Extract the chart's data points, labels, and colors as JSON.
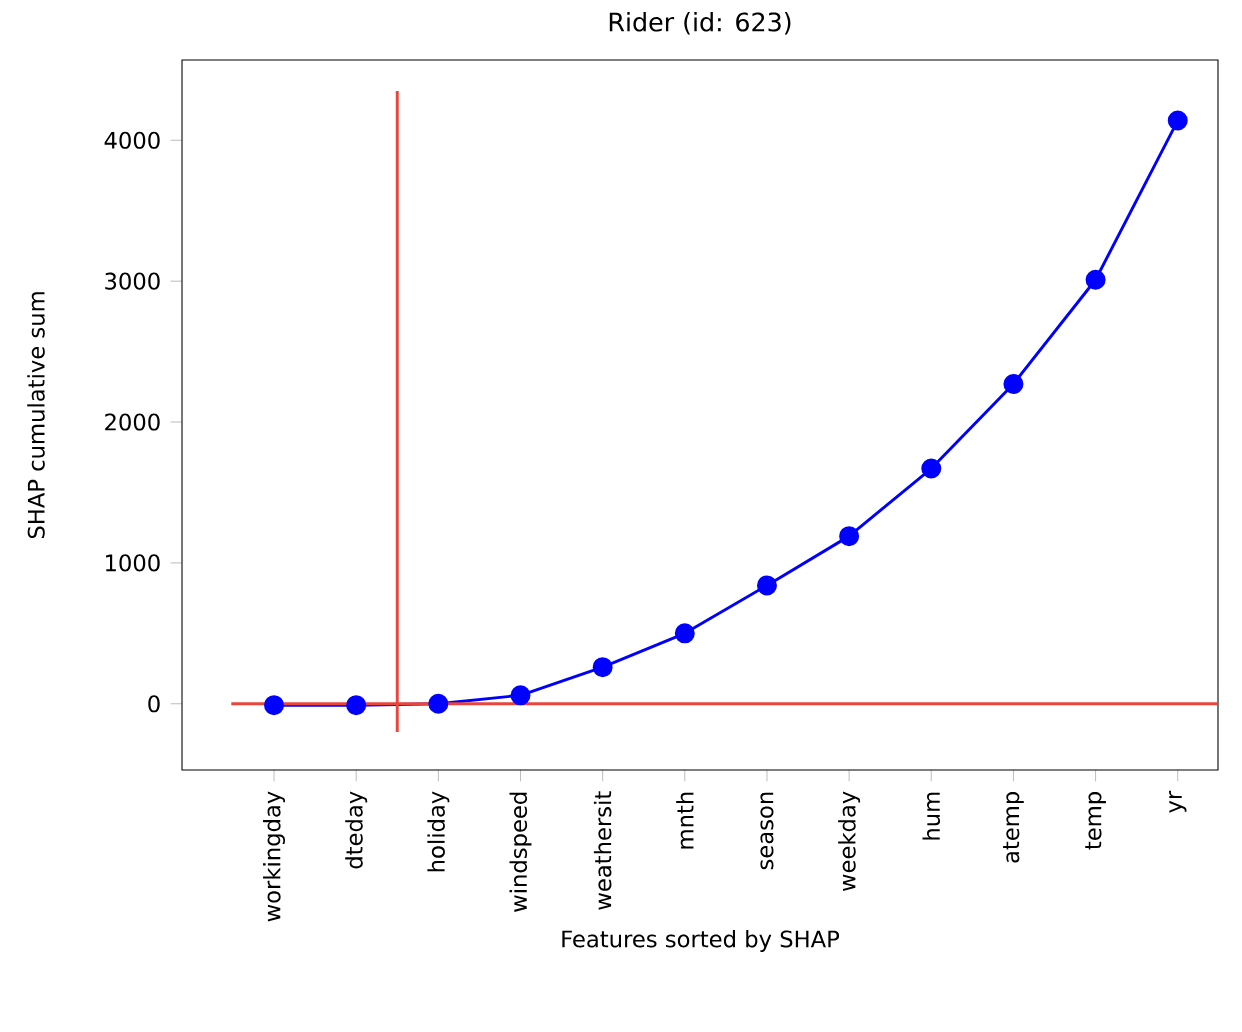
{
  "chart_data": {
    "type": "line",
    "title": "Rider (id: 623)",
    "xlabel": "Features sorted by SHAP",
    "ylabel": "SHAP cumulative sum",
    "categories": [
      "workingday",
      "dteday",
      "holiday",
      "windspeed",
      "weathersit",
      "mnth",
      "season",
      "weekday",
      "hum",
      "atemp",
      "temp",
      "yr"
    ],
    "series": [
      {
        "color": "#0000ff",
        "values": [
          -10,
          -10,
          0,
          60,
          260,
          500,
          840,
          1190,
          1670,
          2270,
          3010,
          4140
        ]
      }
    ],
    "ylim": [
      -470,
      4570
    ],
    "yticks": [
      0,
      1000,
      2000,
      3000,
      4000
    ],
    "grid": false,
    "marker": "circle",
    "line_style": "solid",
    "ref_lines": [
      {
        "axis": "y",
        "value": 0,
        "color": "#e8453c"
      }
    ]
  }
}
